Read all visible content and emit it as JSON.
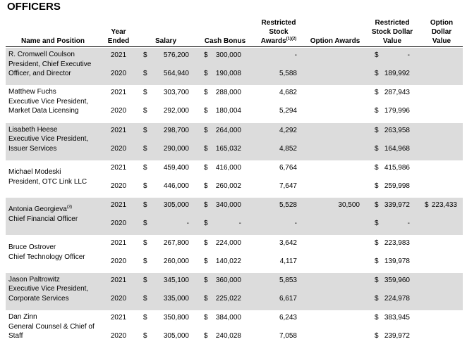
{
  "title": "OFFICERS",
  "header": [
    {
      "lines": [
        "Name and Position"
      ]
    },
    {
      "lines": [
        "Year",
        "Ended"
      ]
    },
    {
      "lines": [
        "Salary"
      ]
    },
    {
      "lines": [
        "Cash Bonus"
      ]
    },
    {
      "lines": [
        "Restricted",
        "Stock",
        "Awards"
      ],
      "sup": "(1)(2)"
    },
    {
      "lines": [
        "Option Awards"
      ]
    },
    {
      "lines": [
        "Restricted",
        "Stock Dollar",
        "Value"
      ]
    },
    {
      "lines": [
        "Option",
        "Dollar",
        "Value"
      ]
    }
  ],
  "officers": [
    {
      "name_lines": [
        "R. Cromwell Coulson",
        "President, Chief Executive",
        "Officer, and Director"
      ],
      "shaded": true,
      "rows": [
        [
          "2021",
          "$",
          "576,200",
          "$",
          "300,000",
          "-",
          null,
          "$",
          "-",
          null,
          null
        ],
        [
          "2020",
          "$",
          "564,940",
          "$",
          "190,008",
          "5,588",
          null,
          "$",
          "189,992",
          null,
          null
        ]
      ]
    },
    {
      "name_lines": [
        "Matthew Fuchs",
        "Executive Vice President,",
        "Market Data Licensing"
      ],
      "shaded": false,
      "rows": [
        [
          "2021",
          "$",
          "303,700",
          "$",
          "288,000",
          "4,682",
          null,
          "$",
          "287,943",
          null,
          null
        ],
        [
          "2020",
          "$",
          "292,000",
          "$",
          "180,004",
          "5,294",
          null,
          "$",
          "179,996",
          null,
          null
        ]
      ]
    },
    {
      "name_lines": [
        "Lisabeth Heese",
        "Executive Vice President,",
        "Issuer Services"
      ],
      "shaded": true,
      "rows": [
        [
          "2021",
          "$",
          "298,700",
          "$",
          "264,000",
          "4,292",
          null,
          "$",
          "263,958",
          null,
          null
        ],
        [
          "2020",
          "$",
          "290,000",
          "$",
          "165,032",
          "4,852",
          null,
          "$",
          "164,968",
          null,
          null
        ]
      ]
    },
    {
      "name_lines": [
        "Michael Modeski",
        "President, OTC Link LLC"
      ],
      "shaded": false,
      "rows": [
        [
          "2021",
          "$",
          "459,400",
          "$",
          "416,000",
          "6,764",
          null,
          "$",
          "415,986",
          null,
          null
        ],
        [
          "2020",
          "$",
          "446,000",
          "$",
          "260,002",
          "7,647",
          null,
          "$",
          "259,998",
          null,
          null
        ]
      ]
    },
    {
      "name_lines": [
        "Antonia Georgieva",
        "Chief Financial Officer"
      ],
      "name_sup": "(3)",
      "shaded": true,
      "rows": [
        [
          "2021",
          "$",
          "305,000",
          "$",
          "340,000",
          "5,528",
          "30,500",
          "$",
          "339,972",
          "$",
          "223,433"
        ],
        [
          "2020",
          "$",
          "-",
          "$",
          "-",
          "-",
          null,
          "$",
          "-",
          null,
          null
        ]
      ]
    },
    {
      "name_lines": [
        "Bruce Ostrover",
        "Chief Technology Officer"
      ],
      "shaded": false,
      "rows": [
        [
          "2021",
          "$",
          "267,800",
          "$",
          "224,000",
          "3,642",
          null,
          "$",
          "223,983",
          null,
          null
        ],
        [
          "2020",
          "$",
          "260,000",
          "$",
          "140,022",
          "4,117",
          null,
          "$",
          "139,978",
          null,
          null
        ]
      ]
    },
    {
      "name_lines": [
        "Jason Paltrowitz",
        "Executive Vice President,",
        "Corporate Services"
      ],
      "shaded": true,
      "rows": [
        [
          "2021",
          "$",
          "345,100",
          "$",
          "360,000",
          "5,853",
          null,
          "$",
          "359,960",
          null,
          null
        ],
        [
          "2020",
          "$",
          "335,000",
          "$",
          "225,022",
          "6,617",
          null,
          "$",
          "224,978",
          null,
          null
        ]
      ]
    },
    {
      "name_lines": [
        "Dan Zinn",
        "General Counsel & Chief of",
        "Staff"
      ],
      "shaded": false,
      "rows": [
        [
          "2021",
          "$",
          "350,800",
          "$",
          "384,000",
          "6,243",
          null,
          "$",
          "383,945",
          null,
          null
        ],
        [
          "2020",
          "$",
          "305,000",
          "$",
          "240,028",
          "7,058",
          null,
          "$",
          "239,972",
          null,
          null
        ]
      ]
    }
  ]
}
